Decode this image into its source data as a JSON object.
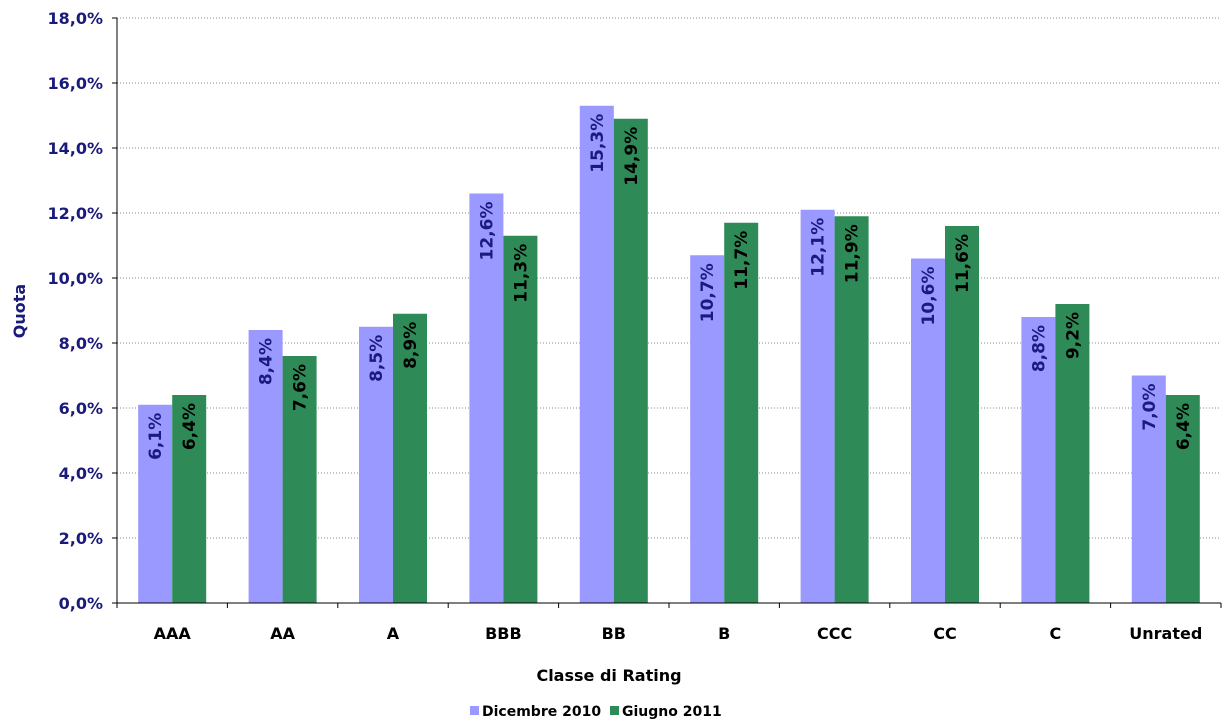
{
  "chart_data": {
    "type": "bar",
    "xlabel": "Classe di Rating",
    "ylabel": "Quota",
    "ylim": [
      0,
      18
    ],
    "yticks": [
      "0,0%",
      "2,0%",
      "4,0%",
      "6,0%",
      "8,0%",
      "10,0%",
      "12,0%",
      "14,0%",
      "16,0%",
      "18,0%"
    ],
    "grid": true,
    "legend_position": "bottom",
    "categories": [
      "AAA",
      "AA",
      "A",
      "BBB",
      "BB",
      "B",
      "CCC",
      "CC",
      "C",
      "Unrated"
    ],
    "series": [
      {
        "name": "Dicembre 2010",
        "color": "#9999ff",
        "label_color": "#1a1a80",
        "values": [
          6.1,
          8.4,
          8.5,
          12.6,
          15.3,
          10.7,
          12.1,
          10.6,
          8.8,
          7.0
        ],
        "labels": [
          "6,1%",
          "8,4%",
          "8,5%",
          "12,6%",
          "15,3%",
          "10,7%",
          "12,1%",
          "10,6%",
          "8,8%",
          "7,0%"
        ]
      },
      {
        "name": "Giugno 2011",
        "color": "#2e8b57",
        "label_color": "#000000",
        "values": [
          6.4,
          7.6,
          8.9,
          11.3,
          14.9,
          11.7,
          11.9,
          11.6,
          9.2,
          6.4
        ],
        "labels": [
          "6,4%",
          "7,6%",
          "8,9%",
          "11,3%",
          "14,9%",
          "11,7%",
          "11,9%",
          "11,6%",
          "9,2%",
          "6,4%"
        ]
      }
    ]
  }
}
